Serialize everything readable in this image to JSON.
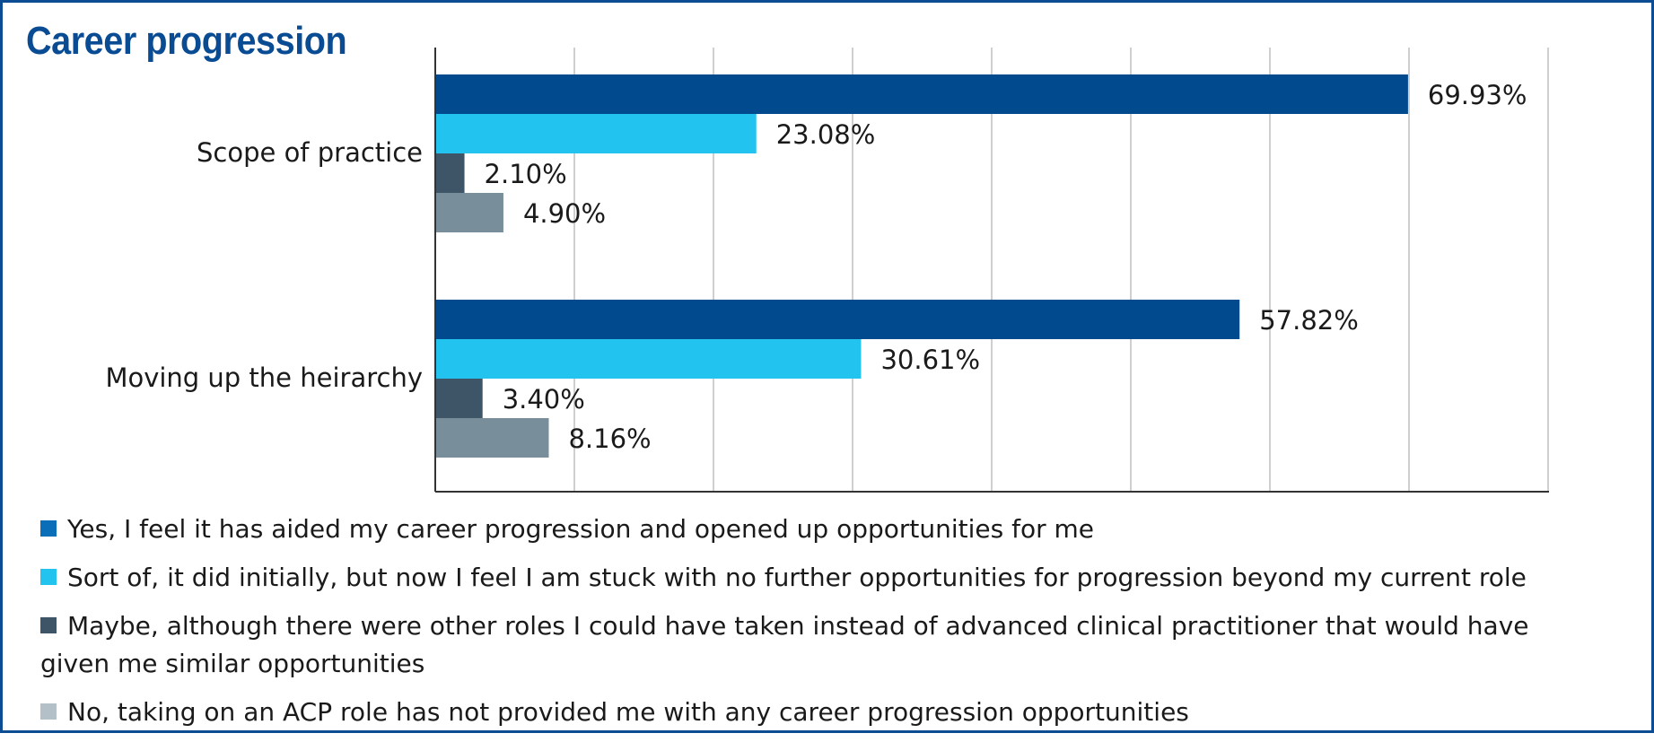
{
  "chart_data": {
    "type": "bar",
    "orientation": "horizontal",
    "title": "Career progression",
    "categories": [
      "Scope of practice",
      "Moving up the heirarchy"
    ],
    "xlim": [
      0,
      80
    ],
    "grid": true,
    "legend_position": "bottom",
    "series": [
      {
        "name": "Yes, I feel it has aided my career progression and opened up opportunities for me",
        "color": "#014a8d",
        "values": [
          69.93,
          57.82
        ],
        "labels": [
          "69.93%",
          "57.82%"
        ]
      },
      {
        "name": "Sort of, it did initially, but now I feel I am stuck with no further opportunities for progression beyond my current role",
        "color": "#22c3ef",
        "values": [
          23.08,
          30.61
        ],
        "labels": [
          "23.08%",
          "30.61%"
        ]
      },
      {
        "name": "Maybe, although there were other roles I could have taken instead of advanced clinical practitioner that would have given me similar opportunities",
        "color": "#3d5566",
        "values": [
          2.1,
          3.4
        ],
        "labels": [
          "2.10%",
          "3.40%"
        ]
      },
      {
        "name": "No, taking on an ACP role has not provided me with any career progression opportunities",
        "color": "#788e9a",
        "values": [
          4.9,
          8.16
        ],
        "labels": [
          "4.90%",
          "8.16%"
        ]
      }
    ],
    "legend_swatch_colors": [
      "#0a6fb8",
      "#22c3ef",
      "#3d5566",
      "#b3c0c8"
    ]
  }
}
